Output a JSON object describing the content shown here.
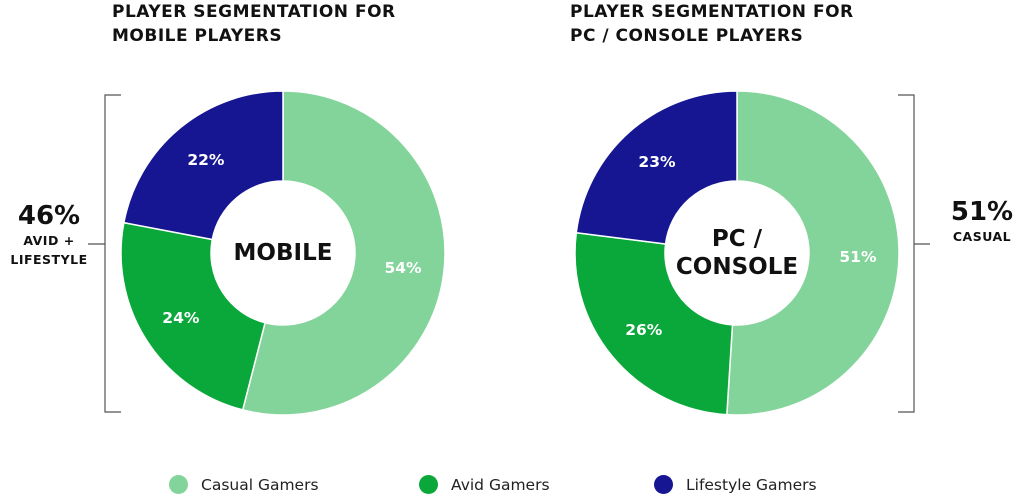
{
  "colors": {
    "casual": "#83d49a",
    "avid": "#0aa83a",
    "lifestyle": "#161693"
  },
  "chart_data": [
    {
      "type": "pie",
      "title": "PLAYER SEGMENTATION FOR MOBILE PLAYERS",
      "title_lines": [
        "PLAYER SEGMENTATION FOR",
        "MOBILE PLAYERS"
      ],
      "center_label": [
        "MOBILE"
      ],
      "categories": [
        "Casual Gamers",
        "Avid Gamers",
        "Lifestyle Gamers"
      ],
      "values": [
        54,
        24,
        22
      ],
      "value_labels": [
        "54%",
        "24%",
        "22%"
      ],
      "callout": {
        "value": "46%",
        "lines": [
          "AVID +",
          "LIFESTYLE"
        ]
      }
    },
    {
      "type": "pie",
      "title": "PLAYER SEGMENTATION FOR PC / CONSOLE PLAYERS",
      "title_lines": [
        "PLAYER SEGMENTATION FOR",
        "PC / CONSOLE PLAYERS"
      ],
      "center_label": [
        "PC /",
        "CONSOLE"
      ],
      "categories": [
        "Casual Gamers",
        "Avid Gamers",
        "Lifestyle Gamers"
      ],
      "values": [
        51,
        26,
        23
      ],
      "value_labels": [
        "51%",
        "26%",
        "23%"
      ],
      "callout": {
        "value": "51%",
        "lines": [
          "CASUAL"
        ]
      }
    }
  ],
  "legend": [
    {
      "label": "Casual Gamers",
      "color": "#83d49a"
    },
    {
      "label": "Avid Gamers",
      "color": "#0aa83a"
    },
    {
      "label": "Lifestyle Gamers",
      "color": "#161693"
    }
  ]
}
